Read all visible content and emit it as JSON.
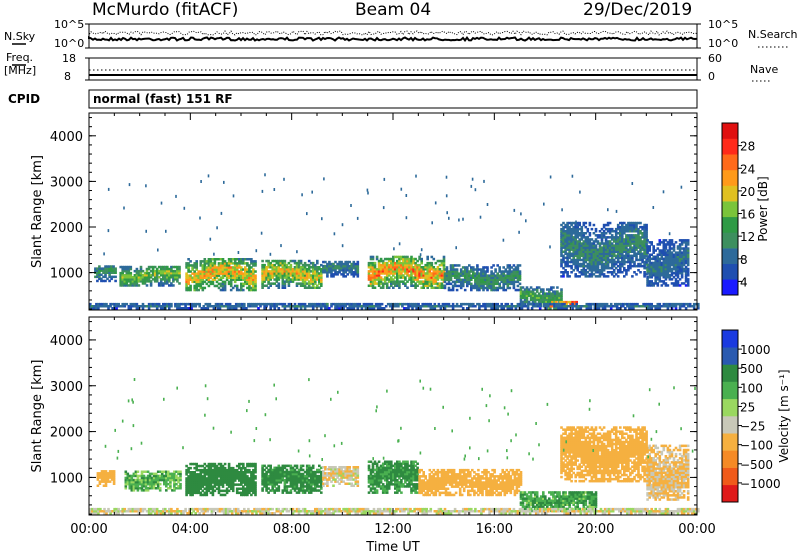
{
  "header": {
    "station": "McMurdo (fitACF)",
    "beam": "Beam 04",
    "date": "29/Dec/2019"
  },
  "panels": {
    "nsky_label": "N.Sky",
    "nsky_ticks": [
      "10^5",
      "10^0"
    ],
    "nsearch_label": "N.Search",
    "nsearch_ticks": [
      "10^5",
      "10^0"
    ],
    "freq_label_1": "Freq.",
    "freq_label_2": "[MHz]",
    "freq_ticks": [
      "18",
      "8"
    ],
    "nave_label": "Nave",
    "nave_ticks": [
      "60",
      "0"
    ],
    "cpid_label": "CPID",
    "cpid_text": "normal (fast) 151 RF"
  },
  "colors": {
    "power_scale": [
      "#1a1aff",
      "#1f4fb0",
      "#2d6a9a",
      "#3d8f5e",
      "#2f9a45",
      "#7ac43a",
      "#e0c020",
      "#ff9a1a",
      "#ff6a1a",
      "#ff2a1a",
      "#e01010"
    ],
    "velocity_scale": [
      "#e01a1a",
      "#f05a1a",
      "#f58a25",
      "#f5b040",
      "#c8c8b8",
      "#9ad860",
      "#4ab050",
      "#2e8a40",
      "#2a5ab0",
      "#1a3ae0"
    ]
  },
  "chart_data": [
    {
      "type": "heatmap",
      "panel": "power",
      "ylabel": "Slant Range [km]",
      "colorbar_label": "Power [dB]",
      "colorbar_ticks": [
        "28",
        "24",
        "20",
        "16",
        "12",
        "8",
        "4"
      ],
      "colorbar_range": [
        0,
        30
      ],
      "ylim": [
        180,
        4500
      ],
      "yticks": [
        1000,
        2000,
        3000,
        4000
      ],
      "xlim": [
        0,
        24
      ],
      "xticks": [
        "00:00",
        "04:00",
        "08:00",
        "12:00",
        "16:00",
        "20:00",
        "00:00"
      ],
      "echo_regions": [
        {
          "t": [
            0.2,
            1.0
          ],
          "r": [
            800,
            1150
          ],
          "peak": 12
        },
        {
          "t": [
            1.2,
            3.6
          ],
          "r": [
            700,
            1150
          ],
          "peak": 18
        },
        {
          "t": [
            3.8,
            6.6
          ],
          "r": [
            600,
            1300
          ],
          "peak": 24
        },
        {
          "t": [
            6.8,
            9.2
          ],
          "r": [
            650,
            1250
          ],
          "peak": 22
        },
        {
          "t": [
            9.2,
            10.6
          ],
          "r": [
            900,
            1250
          ],
          "peak": 10
        },
        {
          "t": [
            11.0,
            14.0
          ],
          "r": [
            650,
            1350
          ],
          "peak": 26
        },
        {
          "t": [
            14.0,
            17.0
          ],
          "r": [
            600,
            1150
          ],
          "peak": 12
        },
        {
          "t": [
            17.0,
            18.6
          ],
          "r": [
            250,
            700
          ],
          "peak": 14
        },
        {
          "t": [
            18.0,
            19.2
          ],
          "r": [
            200,
            380
          ],
          "peak": 30
        },
        {
          "t": [
            18.6,
            22.0
          ],
          "r": [
            900,
            2100
          ],
          "peak": 10
        },
        {
          "t": [
            22.0,
            23.6
          ],
          "r": [
            700,
            1700
          ],
          "peak": 8
        },
        {
          "t": [
            0,
            24
          ],
          "r": [
            200,
            320
          ],
          "peak": 8
        }
      ]
    },
    {
      "type": "heatmap",
      "panel": "velocity",
      "ylabel": "Slant Range [km]",
      "colorbar_label": "Velocity [m s⁻¹]",
      "colorbar_ticks": [
        "1000",
        "500",
        "100",
        "25",
        "−25",
        "−100",
        "−500",
        "−1000"
      ],
      "ylim": [
        180,
        4500
      ],
      "yticks": [
        1000,
        2000,
        3000,
        4000
      ],
      "xlim": [
        0,
        24
      ],
      "xticks": [
        "00:00",
        "04:00",
        "08:00",
        "12:00",
        "16:00",
        "20:00",
        "00:00"
      ],
      "xlabel": "Time UT",
      "echo_regions": [
        {
          "t": [
            0.3,
            1.0
          ],
          "r": [
            800,
            1150
          ],
          "v": -300
        },
        {
          "t": [
            1.4,
            3.6
          ],
          "r": [
            700,
            1150
          ],
          "v": 60
        },
        {
          "t": [
            3.8,
            6.6
          ],
          "r": [
            600,
            1300
          ],
          "v": 200
        },
        {
          "t": [
            6.8,
            9.2
          ],
          "r": [
            650,
            1250
          ],
          "v": 150
        },
        {
          "t": [
            9.2,
            10.6
          ],
          "r": [
            800,
            1250
          ],
          "v": -80
        },
        {
          "t": [
            11.0,
            13.0
          ],
          "r": [
            650,
            1350
          ],
          "v": 120
        },
        {
          "t": [
            13.0,
            17.0
          ],
          "r": [
            600,
            1150
          ],
          "v": -200
        },
        {
          "t": [
            17.0,
            20.0
          ],
          "r": [
            250,
            700
          ],
          "v": 90
        },
        {
          "t": [
            18.6,
            22.0
          ],
          "r": [
            900,
            2100
          ],
          "v": -250
        },
        {
          "t": [
            22.0,
            23.6
          ],
          "r": [
            500,
            1700
          ],
          "v": -120
        },
        {
          "t": [
            0,
            24
          ],
          "r": [
            200,
            320
          ],
          "v": -60
        }
      ]
    }
  ]
}
